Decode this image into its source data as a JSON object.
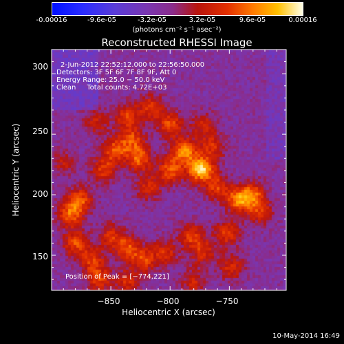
{
  "colorbar": {
    "ticks": [
      "-0.00016",
      "-9.6e-05",
      "-3.2e-05",
      "3.2e-05",
      "9.6e-05",
      "0.00016"
    ],
    "units": "(photons cm⁻² s⁻¹ asec⁻²)"
  },
  "chart_data": {
    "type": "heatmap",
    "title": "Reconstructed RHESSI Image",
    "xlabel": "Heliocentric X (arcsec)",
    "ylabel": "Heliocentric Y (arcsec)",
    "xlim": [
      -900,
      -702
    ],
    "ylim": [
      121,
      320
    ],
    "x_ticks": [
      -850,
      -800,
      -750
    ],
    "x_tick_labels": [
      "−850",
      "−800",
      "−750"
    ],
    "y_ticks": [
      150,
      200,
      250,
      300
    ],
    "y_tick_labels": [
      "150",
      "200",
      "250",
      "300"
    ],
    "value_range": [
      -0.00016,
      0.00016
    ],
    "annotations": {
      "time_range": "2-Jun-2012 22:52:12.000 to 22:56:50.000",
      "detectors": "Detectors: 3F 5F 6F 7F 8F 9F, Att 0",
      "energy": "Energy Range: 25.0 − 50.0 keV",
      "clean": "Clean     Total counts: 4.72E+03",
      "peak": "Position of Peak = [−774,221]"
    },
    "peak": {
      "x": -774,
      "y": 221,
      "value": 0.00016
    },
    "sources": [
      {
        "x": -774,
        "y": 221,
        "value": 0.00016
      },
      {
        "x": -788,
        "y": 236,
        "value": 0.00012
      },
      {
        "x": -800,
        "y": 220,
        "value": 0.0001
      },
      {
        "x": -826,
        "y": 230,
        "value": 0.0001
      },
      {
        "x": -846,
        "y": 237,
        "value": 9e-05
      },
      {
        "x": -832,
        "y": 246,
        "value": 8e-05
      },
      {
        "x": -856,
        "y": 221,
        "value": 8e-05
      },
      {
        "x": -818,
        "y": 206,
        "value": 7e-05
      },
      {
        "x": -876,
        "y": 196,
        "value": 9e-05
      },
      {
        "x": -884,
        "y": 184,
        "value": 0.0001
      },
      {
        "x": -880,
        "y": 160,
        "value": 9e-05
      },
      {
        "x": -866,
        "y": 146,
        "value": 8e-05
      },
      {
        "x": -850,
        "y": 166,
        "value": 7e-05
      },
      {
        "x": -836,
        "y": 156,
        "value": 9e-05
      },
      {
        "x": -822,
        "y": 146,
        "value": 8e-05
      },
      {
        "x": -804,
        "y": 152,
        "value": 7e-05
      },
      {
        "x": -782,
        "y": 166,
        "value": 8e-05
      },
      {
        "x": -772,
        "y": 152,
        "value": 7e-05
      },
      {
        "x": -752,
        "y": 168,
        "value": 8e-05
      },
      {
        "x": -742,
        "y": 196,
        "value": 0.00011
      },
      {
        "x": -730,
        "y": 200,
        "value": 9e-05
      },
      {
        "x": -724,
        "y": 186,
        "value": 7e-05
      },
      {
        "x": -760,
        "y": 206,
        "value": 8e-05
      },
      {
        "x": -764,
        "y": 240,
        "value": 7e-05
      },
      {
        "x": -772,
        "y": 258,
        "value": 6e-05
      },
      {
        "x": -800,
        "y": 258,
        "value": 9e-05
      },
      {
        "x": -816,
        "y": 272,
        "value": 8e-05
      },
      {
        "x": -836,
        "y": 265,
        "value": 8e-05
      },
      {
        "x": -862,
        "y": 260,
        "value": 6e-05
      },
      {
        "x": -890,
        "y": 226,
        "value": 5e-05
      },
      {
        "x": -860,
        "y": 130,
        "value": 8e-05
      },
      {
        "x": -836,
        "y": 128,
        "value": 7e-05
      },
      {
        "x": -780,
        "y": 128,
        "value": 6e-05
      },
      {
        "x": -748,
        "y": 140,
        "value": 7e-05
      }
    ]
  },
  "footer": {
    "date": "10-May-2014 16:49"
  }
}
